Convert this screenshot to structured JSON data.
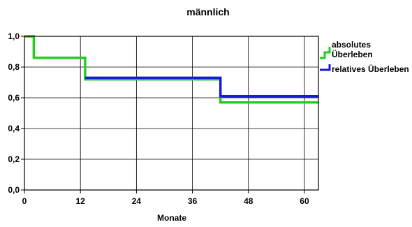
{
  "chart_data": {
    "type": "line",
    "step": true,
    "title": "männlich",
    "xlabel": "Monate",
    "ylabel": "",
    "xlim": [
      0,
      63
    ],
    "ylim": [
      0.0,
      1.0
    ],
    "xticks": [
      0,
      12,
      24,
      36,
      48,
      60
    ],
    "xtick_labels": [
      "0",
      "12",
      "24",
      "36",
      "48",
      "60"
    ],
    "yticks": [
      0.0,
      0.2,
      0.4,
      0.6,
      0.8,
      1.0
    ],
    "ytick_labels": [
      "0,0",
      "0,2",
      "0,4",
      "0,6",
      "0,8",
      "1,0"
    ],
    "grid": true,
    "legend_position": "right",
    "series": [
      {
        "name": "absolutes Überleben",
        "color": "#22cc22",
        "x": [
          0,
          2,
          2,
          13,
          13,
          42,
          42,
          63
        ],
        "y": [
          1.0,
          1.0,
          0.86,
          0.86,
          0.72,
          0.72,
          0.57,
          0.57
        ]
      },
      {
        "name": "relatives Überleben",
        "color": "#1a1ad6",
        "x": [
          13,
          42,
          42,
          63
        ],
        "y": [
          0.73,
          0.73,
          0.61,
          0.61
        ]
      }
    ],
    "legend": [
      {
        "lines": [
          "absolutes",
          "Überleben"
        ],
        "color": "#22cc22"
      },
      {
        "lines": [
          "relatives Überleben"
        ],
        "color": "#1a1ad6"
      }
    ]
  }
}
